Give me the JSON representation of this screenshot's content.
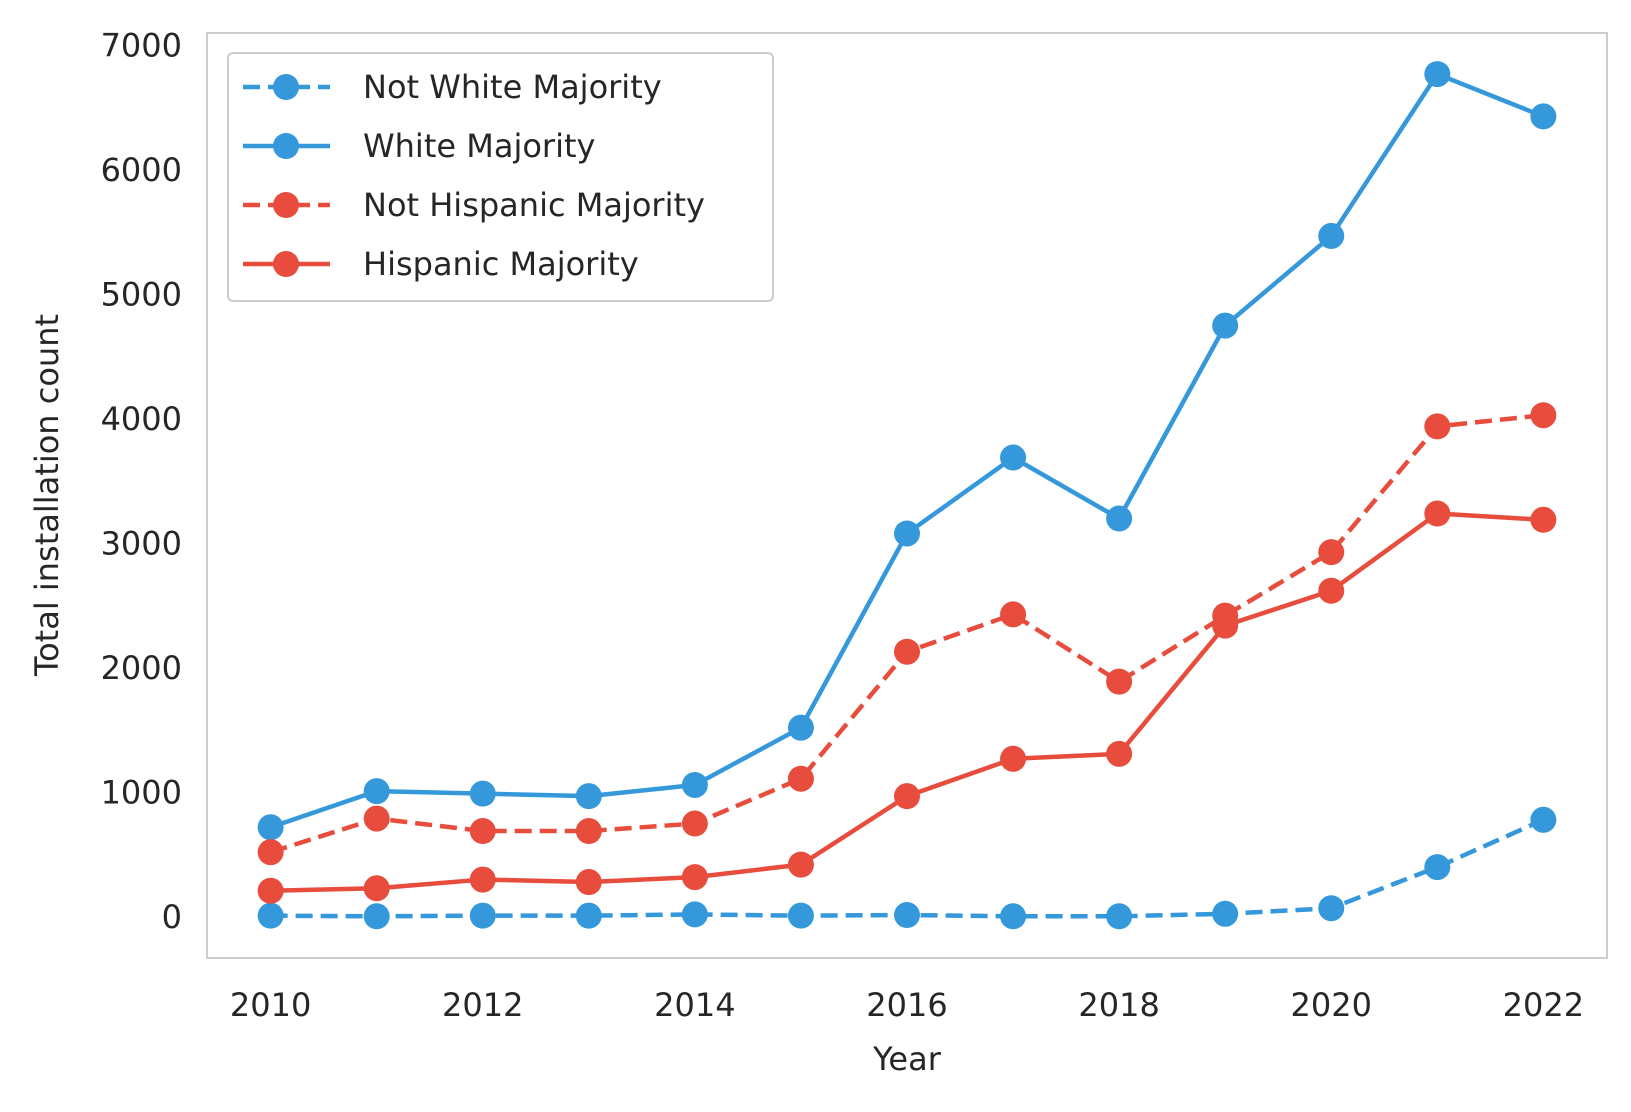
{
  "chart_data": {
    "type": "line",
    "title": "",
    "xlabel": "Year",
    "ylabel": "Total installation count",
    "x": [
      2010,
      2011,
      2012,
      2013,
      2014,
      2015,
      2016,
      2017,
      2018,
      2019,
      2020,
      2021,
      2022
    ],
    "xlim": [
      2009.4,
      2022.6
    ],
    "ylim": [
      -330,
      7100
    ],
    "xticks": [
      2010,
      2012,
      2014,
      2016,
      2018,
      2020,
      2022
    ],
    "yticks": [
      0,
      1000,
      2000,
      3000,
      4000,
      5000,
      6000,
      7000
    ],
    "xtick_labels": [
      "2010",
      "2012",
      "2014",
      "2016",
      "2018",
      "2020",
      "2022"
    ],
    "ytick_labels": [
      "0",
      "1000",
      "2000",
      "3000",
      "4000",
      "5000",
      "6000",
      "7000"
    ],
    "grid": false,
    "legend_position": "top-left",
    "series": [
      {
        "name": "Not White Majority",
        "color": "#3498db",
        "linestyle": "dashed",
        "marker": "circle",
        "values": [
          10,
          5,
          10,
          10,
          20,
          10,
          15,
          5,
          5,
          25,
          70,
          400,
          780
        ]
      },
      {
        "name": "White Majority",
        "color": "#3498db",
        "linestyle": "solid",
        "marker": "circle",
        "values": [
          720,
          1010,
          990,
          970,
          1060,
          1520,
          3080,
          3690,
          3200,
          4750,
          5470,
          6770,
          6430
        ]
      },
      {
        "name": "Not Hispanic Majority",
        "color": "#e74c3c",
        "linestyle": "dashed",
        "marker": "circle",
        "values": [
          520,
          790,
          690,
          690,
          750,
          1110,
          2130,
          2430,
          1890,
          2420,
          2930,
          3940,
          4030
        ]
      },
      {
        "name": "Hispanic Majority",
        "color": "#e74c3c",
        "linestyle": "solid",
        "marker": "circle",
        "values": [
          210,
          230,
          300,
          280,
          320,
          420,
          970,
          1270,
          1310,
          2340,
          2620,
          3240,
          3190
        ]
      }
    ]
  }
}
